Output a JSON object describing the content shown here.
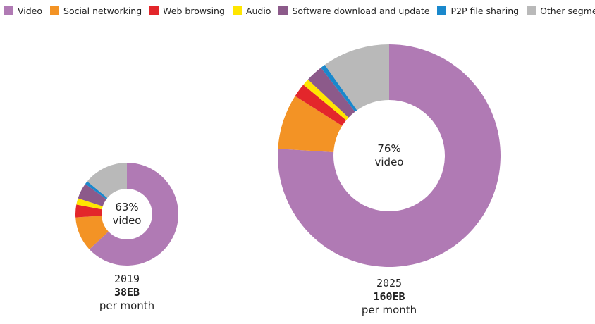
{
  "chart_data": [
    {
      "type": "pie",
      "donut": true,
      "categories": [
        "Video",
        "Social networking",
        "Web browsing",
        "Audio",
        "Software download and update",
        "P2P file sharing",
        "Other segments"
      ],
      "colors": [
        "#b07ab4",
        "#f39325",
        "#e3262b",
        "#ffe600",
        "#8c5a8a",
        "#1a88cc",
        "#b9b9b9"
      ],
      "values": [
        63,
        11,
        4,
        2,
        5,
        1,
        14
      ],
      "center_label": [
        "63%",
        "video"
      ],
      "year": "2019",
      "total": "38EB",
      "unit": "per month"
    },
    {
      "type": "pie",
      "donut": true,
      "categories": [
        "Video",
        "Social networking",
        "Web browsing",
        "Audio",
        "Software download and update",
        "P2P file sharing",
        "Other segments"
      ],
      "colors": [
        "#b07ab4",
        "#f39325",
        "#e3262b",
        "#ffe600",
        "#8c5a8a",
        "#1a88cc",
        "#b9b9b9"
      ],
      "values": [
        76,
        8,
        2,
        1,
        2.5,
        0.7,
        9.8
      ],
      "center_label": [
        "76%",
        "video"
      ],
      "year": "2025",
      "total": "160EB",
      "unit": "per month"
    }
  ],
  "legend": {
    "position": "top",
    "items": [
      {
        "label": "Video",
        "color": "#b07ab4"
      },
      {
        "label": "Social networking",
        "color": "#f39325"
      },
      {
        "label": "Web browsing",
        "color": "#e3262b"
      },
      {
        "label": "Audio",
        "color": "#ffe600"
      },
      {
        "label": "Software download and update",
        "color": "#8c5a8a"
      },
      {
        "label": "P2P file sharing",
        "color": "#1a88cc"
      },
      {
        "label": "Other segments",
        "color": "#b9b9b9"
      }
    ]
  }
}
